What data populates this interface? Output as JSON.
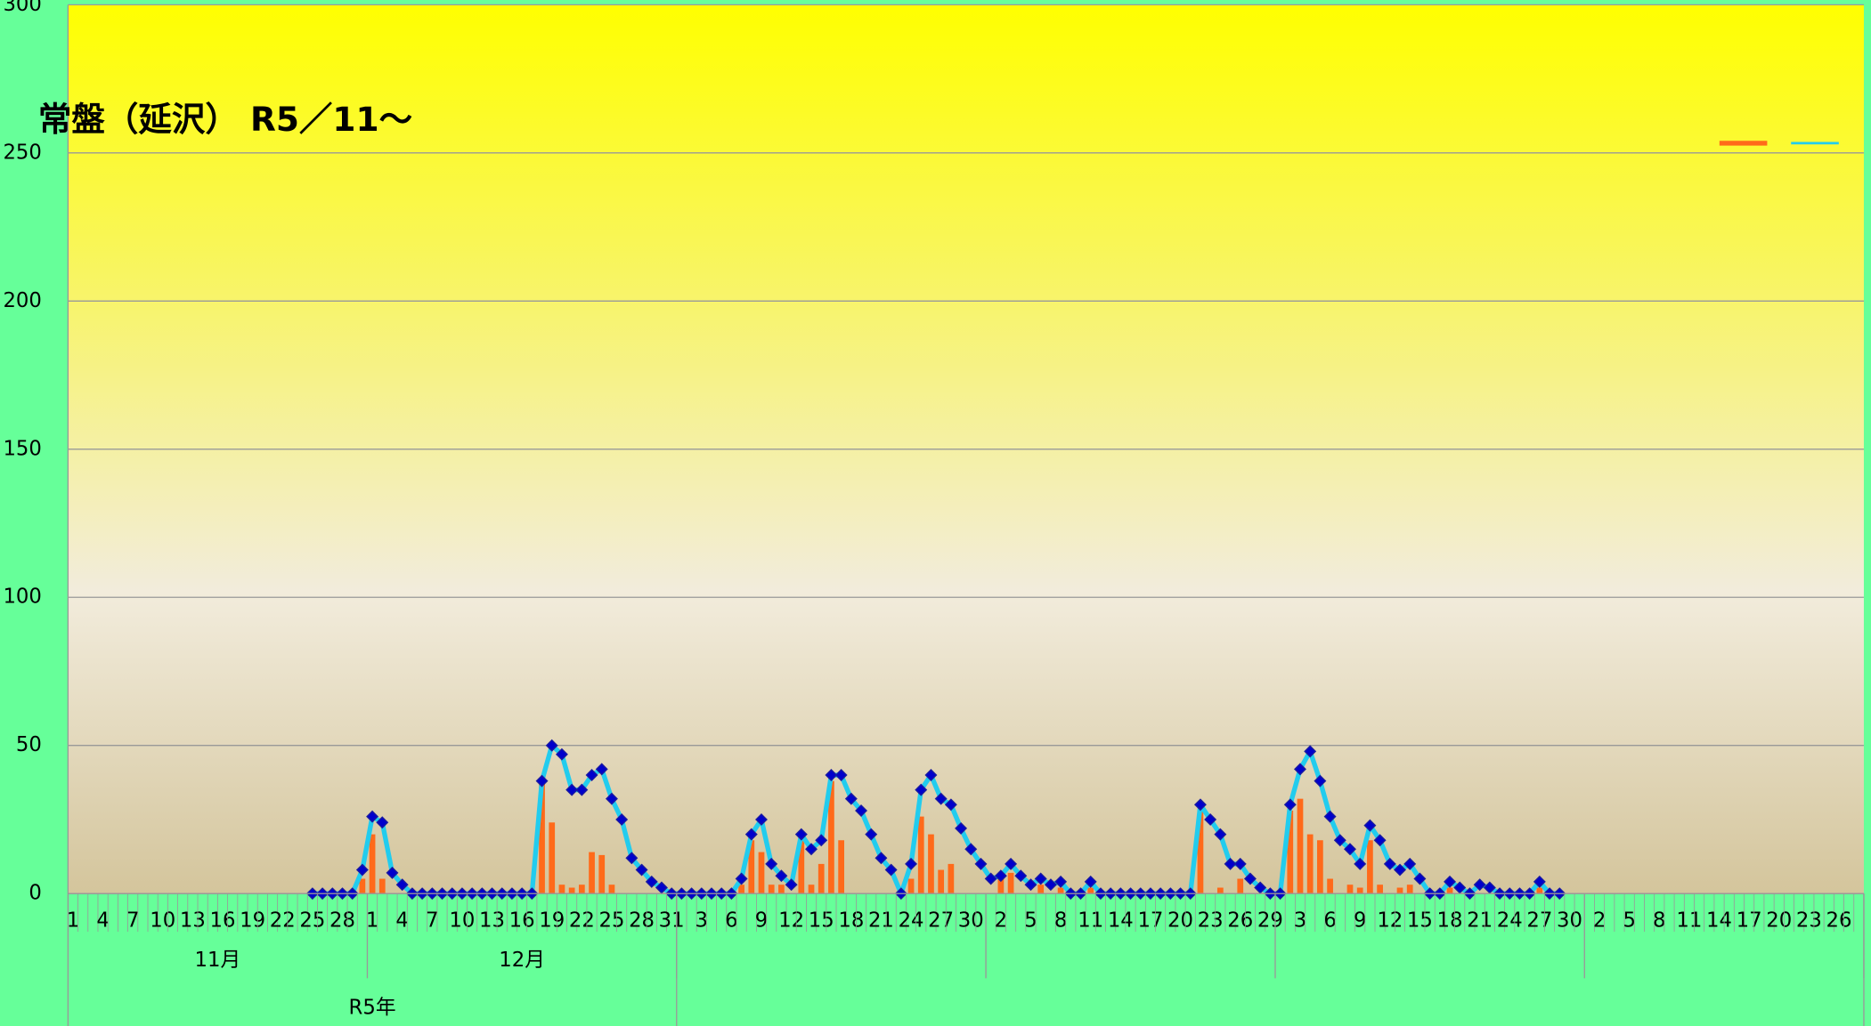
{
  "chart_data": {
    "type": "bar-line",
    "title": "常盤（延沢） R5／11～",
    "categories": [
      "1",
      null,
      null,
      "4",
      null,
      null,
      "7",
      null,
      null,
      "10",
      null,
      null,
      "13",
      null,
      null,
      "16",
      null,
      null,
      "19",
      null,
      null,
      "22",
      null,
      null,
      "25",
      null,
      null,
      "28",
      null,
      null,
      "1",
      null,
      null,
      "4",
      null,
      null,
      "7",
      null,
      null,
      "10",
      null,
      null,
      "13",
      null,
      null,
      "16",
      null,
      null,
      "19",
      null,
      null,
      "22",
      null,
      null,
      "25",
      null,
      null,
      "28",
      null,
      null,
      "31",
      null,
      null,
      "3",
      null,
      null,
      "6",
      null,
      null,
      "9",
      null,
      null,
      "12",
      null,
      null,
      "15",
      null,
      null,
      "18",
      null,
      null,
      "21",
      null,
      null,
      "24",
      null,
      null,
      "27",
      null,
      null,
      "30",
      null,
      null,
      "2",
      null,
      null,
      "5",
      null,
      null,
      "8",
      null,
      null,
      "11",
      null,
      null,
      "14",
      null,
      null,
      "17",
      null,
      null,
      "20",
      null,
      null,
      "23",
      null,
      null,
      "26",
      null,
      null,
      "29",
      null,
      null,
      "3",
      null,
      null,
      "6",
      null,
      null,
      "9",
      null,
      null,
      "12",
      null,
      null,
      "15",
      null,
      null,
      "18",
      null,
      null,
      "21",
      null,
      null,
      "24",
      null,
      null,
      "27",
      null,
      null,
      "30",
      null,
      null,
      "2",
      null,
      null,
      "5",
      null,
      null,
      "8",
      null,
      null,
      "11",
      null,
      null,
      "14",
      null,
      null,
      "17",
      null,
      null,
      "20",
      null,
      null,
      "23",
      null,
      null,
      "26",
      null,
      null
    ],
    "month_groups": [
      {
        "label": "11月",
        "size": 30
      },
      {
        "label": "12月",
        "size": 31
      },
      {
        "label": null,
        "size": 31
      },
      {
        "label": null,
        "size": 29
      },
      {
        "label": null,
        "size": 31
      },
      {
        "label": null,
        "size": 28
      }
    ],
    "year_groups": [
      {
        "label": "R5年",
        "size": 61
      },
      {
        "label": null,
        "size": 119
      }
    ],
    "series": [
      {
        "kind": "bar",
        "color": "#ff6a1a",
        "values": [
          null,
          null,
          null,
          null,
          null,
          null,
          null,
          null,
          null,
          null,
          null,
          null,
          null,
          null,
          null,
          null,
          null,
          null,
          null,
          null,
          null,
          null,
          null,
          null,
          0,
          0,
          0,
          0,
          0,
          5,
          20,
          5,
          0,
          0,
          0,
          0,
          0,
          0,
          0,
          0,
          0,
          0,
          0,
          0,
          0,
          0,
          0,
          38,
          24,
          3,
          2,
          3,
          14,
          13,
          3,
          0,
          0,
          0,
          0,
          0,
          0,
          0,
          0,
          0,
          0,
          0,
          0,
          3,
          18,
          14,
          3,
          3,
          0,
          18,
          3,
          10,
          38,
          18,
          0,
          0,
          0,
          0,
          0,
          0,
          5,
          26,
          20,
          8,
          10,
          0,
          0,
          0,
          0,
          5,
          7,
          0,
          0,
          3,
          0,
          2,
          0,
          0,
          2,
          0,
          0,
          0,
          0,
          0,
          0,
          0,
          0,
          0,
          0,
          28,
          0,
          2,
          0,
          5,
          0,
          0,
          0,
          0,
          28,
          32,
          20,
          18,
          5,
          0,
          3,
          2,
          18,
          3,
          0,
          2,
          3,
          0,
          0,
          0,
          2,
          0,
          0,
          0,
          0,
          0,
          0,
          0,
          0,
          2,
          0,
          0,
          null,
          null,
          null,
          null,
          null,
          null,
          null,
          null,
          null,
          null,
          null,
          null,
          null,
          null,
          null,
          null,
          null,
          null,
          null,
          null,
          null,
          null,
          null,
          null,
          null,
          null,
          null,
          null,
          null,
          null
        ]
      },
      {
        "kind": "line",
        "color": "#22ccee",
        "marker_color": "#1a1aa0",
        "values": [
          null,
          null,
          null,
          null,
          null,
          null,
          null,
          null,
          null,
          null,
          null,
          null,
          null,
          null,
          null,
          null,
          null,
          null,
          null,
          null,
          null,
          null,
          null,
          null,
          0,
          0,
          0,
          0,
          0,
          8,
          26,
          24,
          7,
          3,
          0,
          0,
          0,
          0,
          0,
          0,
          0,
          0,
          0,
          0,
          0,
          0,
          0,
          38,
          50,
          47,
          35,
          35,
          40,
          42,
          32,
          25,
          12,
          8,
          4,
          2,
          0,
          0,
          0,
          0,
          0,
          0,
          0,
          5,
          20,
          25,
          10,
          6,
          3,
          20,
          15,
          18,
          40,
          40,
          32,
          28,
          20,
          12,
          8,
          0,
          10,
          35,
          40,
          32,
          30,
          22,
          15,
          10,
          5,
          6,
          10,
          6,
          3,
          5,
          3,
          4,
          0,
          0,
          4,
          0,
          0,
          0,
          0,
          0,
          0,
          0,
          0,
          0,
          0,
          30,
          25,
          20,
          10,
          10,
          5,
          2,
          0,
          0,
          30,
          42,
          48,
          38,
          26,
          18,
          15,
          10,
          23,
          18,
          10,
          8,
          10,
          5,
          0,
          0,
          4,
          2,
          0,
          3,
          2,
          0,
          0,
          0,
          0,
          4,
          0,
          0,
          null,
          null,
          null,
          null,
          null,
          null,
          null,
          null,
          null,
          null,
          null,
          null,
          null,
          null,
          null,
          null,
          null,
          null,
          null,
          null,
          null,
          null,
          null,
          null,
          null,
          null,
          null,
          null,
          null,
          null
        ]
      }
    ],
    "ylim": [
      0,
      300
    ],
    "yticks": [
      0,
      50,
      100,
      150,
      200,
      250,
      300
    ],
    "grid": true,
    "legend": "top-right"
  }
}
